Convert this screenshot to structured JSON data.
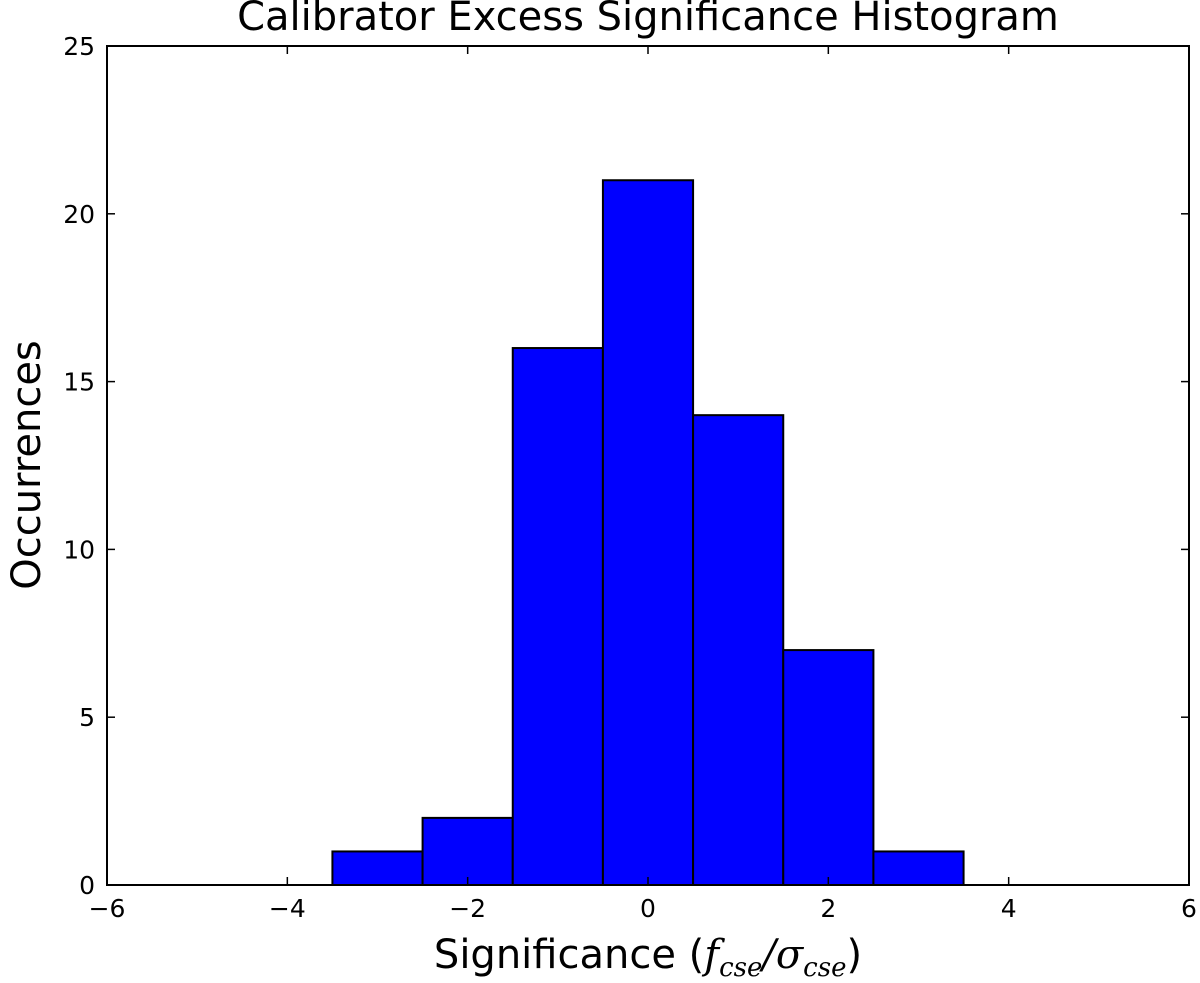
{
  "chart_data": {
    "type": "bar",
    "title": "Calibrator Excess Significance Histogram",
    "xlabel_text": "Significance (",
    "xlabel_num": "f",
    "xlabel_num_sub": "cse",
    "xlabel_sep": "/",
    "xlabel_den": "σ",
    "xlabel_den_sub": "cse",
    "xlabel_close": ")",
    "ylabel": "Occurrences",
    "xlim": [
      -6,
      6
    ],
    "ylim": [
      0,
      25
    ],
    "xticks": [
      -6,
      -4,
      -2,
      0,
      2,
      4,
      6
    ],
    "xtick_labels": [
      "−6",
      "−4",
      "−2",
      "0",
      "2",
      "4",
      "6"
    ],
    "yticks": [
      0,
      5,
      10,
      15,
      20,
      25
    ],
    "ytick_labels": [
      "0",
      "5",
      "10",
      "15",
      "20",
      "25"
    ],
    "bin_edges": [
      -5.5,
      -4.5,
      -3.5,
      -2.5,
      -1.5,
      -0.5,
      0.5,
      1.5,
      2.5,
      3.5,
      4.5
    ],
    "values": [
      0,
      0,
      1,
      2,
      16,
      21,
      14,
      7,
      1,
      0
    ],
    "bar_color": "#0000ff",
    "edge_color": "#000000",
    "grid": false
  }
}
